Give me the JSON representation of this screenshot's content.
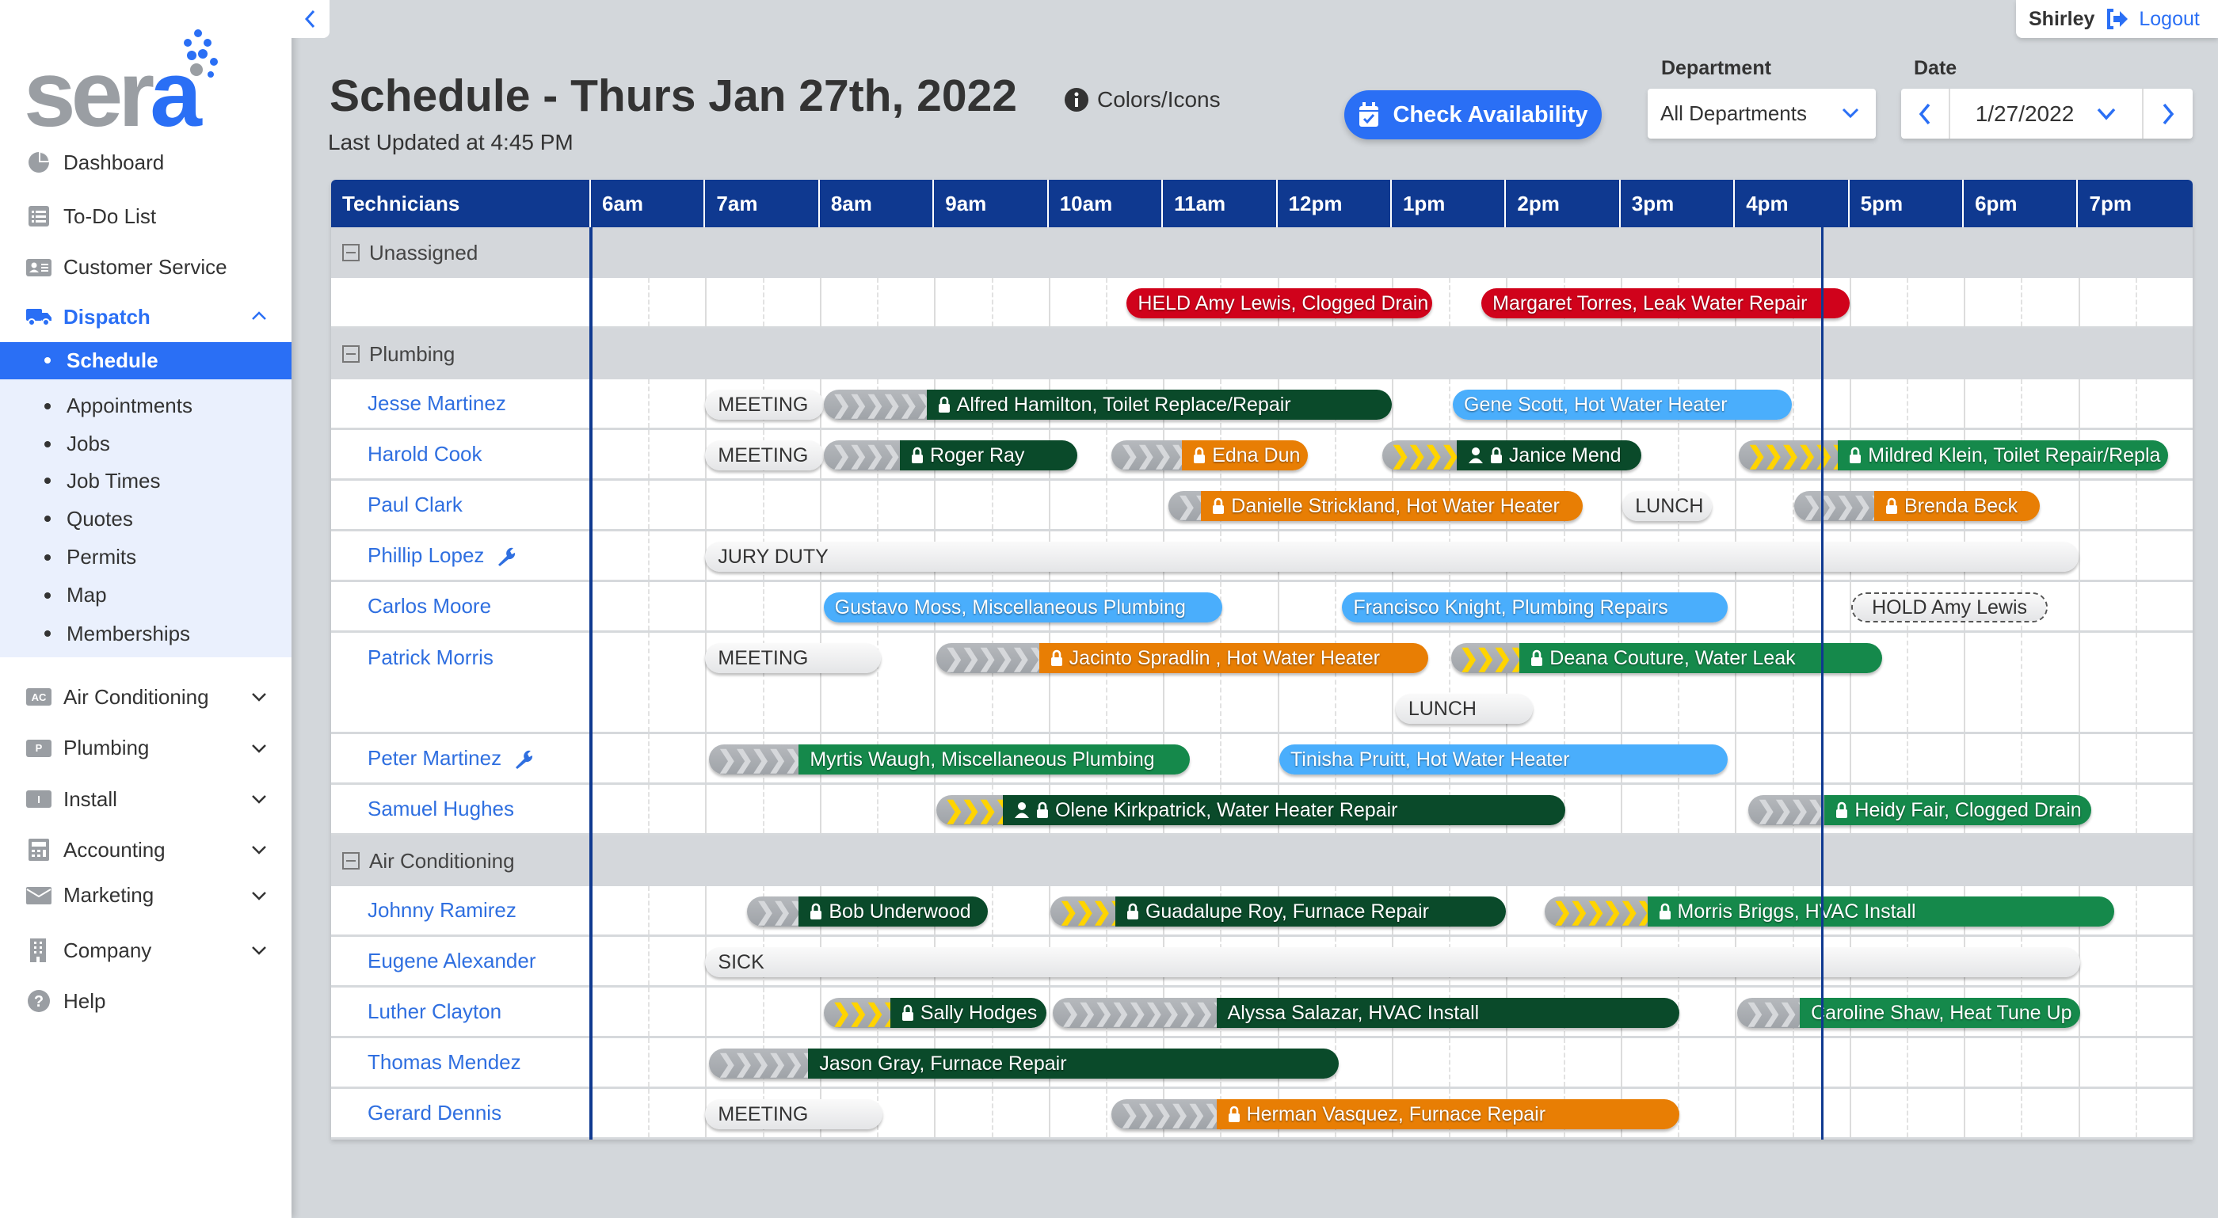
{
  "brand": {
    "logo_text": "sera",
    "accent": "#2a6ff5"
  },
  "sidebar": {
    "items": [
      {
        "label": "Dashboard",
        "icon": "pie-chart-icon"
      },
      {
        "label": "To-Do List",
        "icon": "list-icon"
      },
      {
        "label": "Customer Service",
        "icon": "id-card-icon"
      },
      {
        "label": "Dispatch",
        "icon": "truck-icon",
        "expanded": true
      }
    ],
    "dispatch_sub": [
      "Schedule",
      "Appointments",
      "Jobs",
      "Job Times",
      "Quotes",
      "Permits",
      "Map",
      "Memberships"
    ],
    "active_sub": "Schedule",
    "lower": [
      {
        "label": "Air Conditioning",
        "tag": "AC"
      },
      {
        "label": "Plumbing",
        "tag": "P"
      },
      {
        "label": "Install",
        "tag": "I"
      },
      {
        "label": "Accounting",
        "icon": "calculator-icon"
      },
      {
        "label": "Marketing",
        "icon": "envelope-icon"
      },
      {
        "label": "Company",
        "icon": "building-icon"
      },
      {
        "label": "Help",
        "icon": "question-icon"
      }
    ]
  },
  "user": {
    "name": "Shirley",
    "logout": "Logout"
  },
  "header": {
    "title": "Schedule - Thurs Jan 27th, 2022",
    "updated": "Last Updated at 4:45 PM",
    "legend_link": "Colors/Icons",
    "check_availability": "Check Availability",
    "department_label": "Department",
    "department_value": "All Departments",
    "date_label": "Date",
    "date_value": "1/27/2022"
  },
  "colors": {
    "dark_green": "#0a4a2a",
    "green": "#15894b",
    "orange": "#e87e04",
    "light_blue": "#4aaefc",
    "red": "#d0021b",
    "header_navy": "#0f3990"
  },
  "schedule": {
    "tech_header": "Technicians",
    "hours": [
      "6am",
      "7am",
      "8am",
      "9am",
      "10am",
      "11am",
      "12pm",
      "1pm",
      "2pm",
      "3pm",
      "4pm",
      "5pm",
      "6pm",
      "7pm"
    ],
    "now": "16:45",
    "groups": [
      {
        "name": "Unassigned",
        "rows": [
          {
            "name": "",
            "events": [
              {
                "kind": "job",
                "label": "HELD Amy Lewis, Clogged Drain",
                "color": "red",
                "start": "10:41",
                "end": "13:21"
              },
              {
                "kind": "job",
                "label": "Margaret Torres, Leak Water Repair",
                "color": "red",
                "start": "13:47",
                "end": "17:00"
              }
            ]
          }
        ]
      },
      {
        "name": "Plumbing",
        "rows": [
          {
            "name": "Jesse Martinez",
            "events": [
              {
                "kind": "block",
                "label": "MEETING",
                "start": "7:00",
                "end": "8:02"
              },
              {
                "kind": "job",
                "label": "Alfred Hamilton, Toilet Replace/Repair",
                "color": "dark_green",
                "travel": "gray",
                "travel_start": "8:02",
                "start": "8:56",
                "end": "13:00",
                "icons": [
                  "lock"
                ]
              },
              {
                "kind": "job",
                "label": "Gene Scott, Hot Water Heater",
                "color": "light_blue",
                "start": "13:32",
                "end": "16:30"
              }
            ]
          },
          {
            "name": "Harold Cook",
            "events": [
              {
                "kind": "block",
                "label": "MEETING",
                "start": "7:00",
                "end": "8:02"
              },
              {
                "kind": "job",
                "label": "Roger Ray",
                "color": "dark_green",
                "travel": "gray",
                "travel_start": "8:02",
                "start": "8:42",
                "end": "10:15",
                "icons": [
                  "lock"
                ]
              },
              {
                "kind": "job",
                "label": "Edna Dun",
                "color": "orange",
                "travel": "gray",
                "travel_start": "10:33",
                "start": "11:10",
                "end": "12:16",
                "icons": [
                  "lock"
                ]
              },
              {
                "kind": "job",
                "label": "Janice Mend",
                "color": "dark_green",
                "travel": "yellow",
                "travel_start": "12:55",
                "start": "13:34",
                "end": "15:11",
                "icons": [
                  "person",
                  "lock"
                ]
              },
              {
                "kind": "job",
                "label": "Mildred Klein, Toilet Repair/Repla",
                "color": "green",
                "travel": "yellow",
                "travel_start": "16:02",
                "start": "16:54",
                "end": "19:47",
                "icons": [
                  "lock"
                ]
              }
            ]
          },
          {
            "name": "Paul Clark",
            "events": [
              {
                "kind": "job",
                "label": "Danielle Strickland, Hot Water Heater",
                "color": "orange",
                "travel": "gray",
                "travel_start": "11:03",
                "start": "11:20",
                "end": "14:40",
                "icons": [
                  "lock"
                ]
              },
              {
                "kind": "block",
                "label": "LUNCH",
                "start": "15:01",
                "end": "15:48"
              },
              {
                "kind": "job",
                "label": "Brenda Beck",
                "color": "orange",
                "travel": "gray",
                "travel_start": "16:31",
                "start": "17:13",
                "end": "18:40",
                "icons": [
                  "lock"
                ]
              }
            ]
          },
          {
            "name": "Phillip Lopez",
            "wrench": true,
            "events": [
              {
                "kind": "block",
                "label": "JURY DUTY",
                "start": "7:00",
                "end": "19:00"
              }
            ]
          },
          {
            "name": "Carlos Moore",
            "events": [
              {
                "kind": "job",
                "label": "Gustavo Moss, Miscellaneous Plumbing",
                "color": "light_blue",
                "start": "8:02",
                "end": "11:31"
              },
              {
                "kind": "job",
                "label": "Francisco Knight, Plumbing Repairs",
                "color": "light_blue",
                "start": "12:34",
                "end": "15:56"
              },
              {
                "kind": "hold",
                "label": "HOLD Amy Lewis",
                "start": "17:01",
                "end": "18:44"
              }
            ]
          },
          {
            "name": "Patrick Morris",
            "tall": true,
            "events": [
              {
                "kind": "block",
                "label": "MEETING",
                "start": "7:00",
                "end": "8:32"
              },
              {
                "kind": "job",
                "label": "Jacinto Spradlin , Hot Water Heater",
                "color": "orange",
                "travel": "gray",
                "travel_start": "9:01",
                "start": "9:55",
                "end": "13:19",
                "icons": [
                  "lock"
                ]
              },
              {
                "kind": "job",
                "label": "Deana Couture, Water Leak",
                "color": "green",
                "travel": "yellow",
                "travel_start": "13:31",
                "start": "14:07",
                "end": "17:17",
                "icons": [
                  "lock"
                ]
              },
              {
                "kind": "block",
                "label": "LUNCH",
                "start": "13:02",
                "end": "14:14",
                "line": 2
              }
            ]
          },
          {
            "name": "Peter Martinez",
            "wrench": true,
            "events": [
              {
                "kind": "job",
                "label": "Myrtis Waugh, Miscellaneous Plumbing",
                "color": "green",
                "travel": "gray",
                "travel_start": "7:02",
                "start": "7:49",
                "end": "11:14"
              },
              {
                "kind": "job",
                "label": "Tinisha Pruitt, Hot Water Heater",
                "color": "light_blue",
                "start": "12:01",
                "end": "15:56"
              }
            ]
          },
          {
            "name": "Samuel Hughes",
            "events": [
              {
                "kind": "job",
                "label": "Olene Kirkpatrick, Water Heater Repair",
                "color": "dark_green",
                "travel": "yellow",
                "travel_start": "9:01",
                "start": "9:36",
                "end": "14:31",
                "icons": [
                  "person",
                  "lock"
                ]
              },
              {
                "kind": "job",
                "label": "Heidy Fair, Clogged Drain",
                "color": "green",
                "travel": "gray",
                "travel_start": "16:07",
                "start": "16:47",
                "end": "19:07",
                "icons": [
                  "lock"
                ]
              }
            ]
          }
        ]
      },
      {
        "name": "Air Conditioning",
        "rows": [
          {
            "name": "Johnny Ramirez",
            "events": [
              {
                "kind": "job",
                "label": "Bob Underwood",
                "color": "dark_green",
                "travel": "gray",
                "travel_start": "7:22",
                "start": "7:49",
                "end": "9:28",
                "icons": [
                  "lock"
                ]
              },
              {
                "kind": "job",
                "label": "Guadalupe Roy, Furnace Repair",
                "color": "dark_green",
                "travel": "yellow",
                "travel_start": "10:01",
                "start": "10:35",
                "end": "14:00",
                "icons": [
                  "lock"
                ]
              },
              {
                "kind": "job",
                "label": "Morris Briggs, HVAC Install",
                "color": "green",
                "travel": "yellow",
                "travel_start": "14:20",
                "start": "15:14",
                "end": "19:19",
                "icons": [
                  "lock"
                ]
              }
            ]
          },
          {
            "name": "Eugene Alexander",
            "events": [
              {
                "kind": "block",
                "label": "SICK",
                "start": "7:00",
                "end": "19:01"
              }
            ]
          },
          {
            "name": "Luther Clayton",
            "events": [
              {
                "kind": "job",
                "label": "Sally Hodges",
                "color": "dark_green",
                "travel": "yellow",
                "travel_start": "8:02",
                "start": "8:37",
                "end": "9:59",
                "icons": [
                  "lock"
                ]
              },
              {
                "kind": "job",
                "label": "Alyssa Salazar, HVAC Install",
                "color": "dark_green",
                "travel": "gray",
                "travel_start": "10:02",
                "start": "11:28",
                "end": "15:31"
              },
              {
                "kind": "job",
                "label": "Caroline Shaw, Heat Tune Up",
                "color": "green",
                "travel": "gray",
                "travel_start": "16:01",
                "start": "16:34",
                "end": "19:01"
              }
            ]
          },
          {
            "name": "Thomas Mendez",
            "events": [
              {
                "kind": "job",
                "label": "Jason Gray, Furnace Repair",
                "color": "dark_green",
                "travel": "gray",
                "travel_start": "7:02",
                "start": "7:54",
                "end": "12:32"
              }
            ]
          },
          {
            "name": "Gerard Dennis",
            "events": [
              {
                "kind": "block",
                "label": "MEETING",
                "start": "7:00",
                "end": "8:33"
              },
              {
                "kind": "job",
                "label": "Herman Vasquez, Furnace Repair",
                "color": "orange",
                "travel": "gray",
                "travel_start": "10:33",
                "start": "11:28",
                "end": "15:31",
                "icons": [
                  "lock"
                ]
              }
            ]
          }
        ]
      }
    ]
  }
}
